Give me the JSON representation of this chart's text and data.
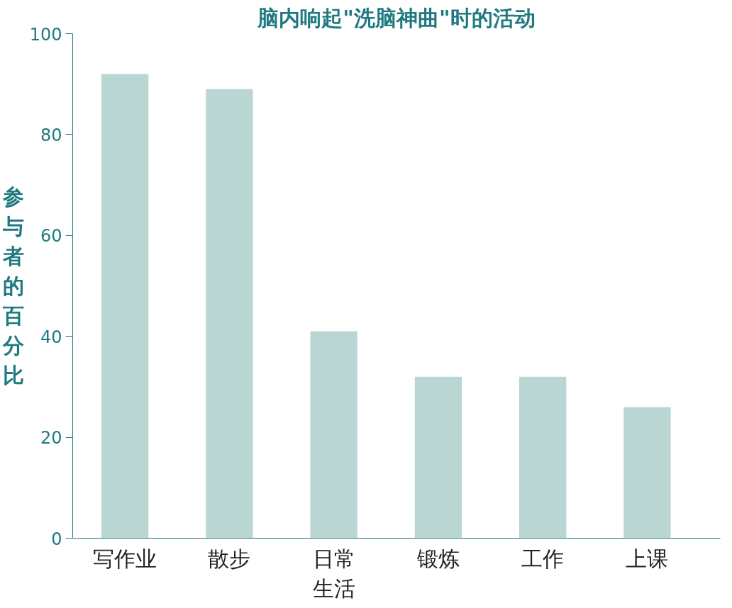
{
  "chart_data": {
    "type": "bar",
    "title": "脑内响起\"洗脑神曲\"时的活动",
    "ylabel": "参与者的百分比",
    "categories": [
      "写作业",
      "散步",
      "日常生活",
      "锻炼",
      "工作",
      "上课"
    ],
    "values": [
      92,
      89,
      41,
      32,
      32,
      26
    ],
    "color": "#b9d6d2",
    "ylim": [
      0,
      100
    ],
    "yticks": [
      0,
      20,
      40,
      60,
      80,
      100
    ],
    "grid": false
  }
}
